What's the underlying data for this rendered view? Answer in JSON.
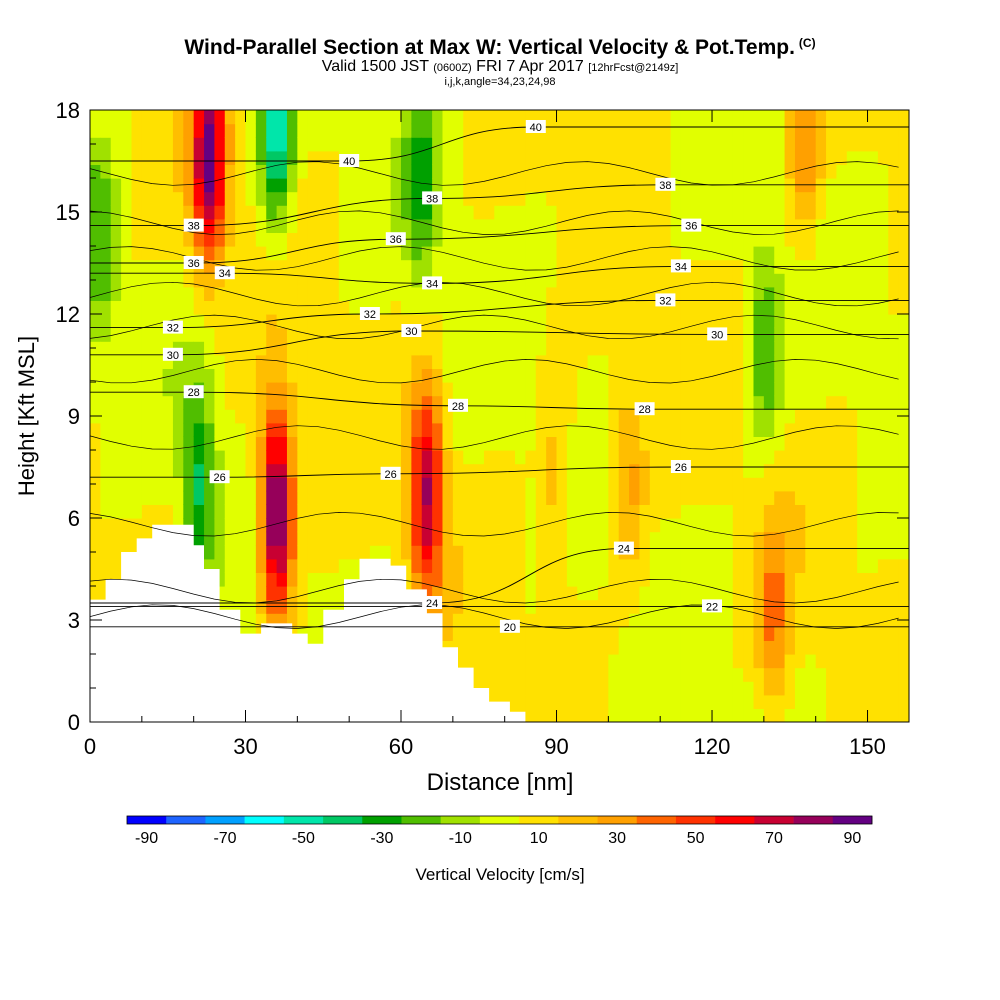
{
  "header": {
    "title": "Wind-Parallel Section at Max W: Vertical Velocity & Pot.Temp.",
    "title_tag": "(C)",
    "valid_prefix": "Valid 1500 JST",
    "valid_utc": "(0600Z)",
    "valid_date": "FRI 7 Apr 2017",
    "forecast": "[12hrFcst@2149z]",
    "indices": "i,j,k,angle=34,23,24,98"
  },
  "colors": {
    "colorbar": [
      "#0000ff",
      "#1e64ff",
      "#00a0ff",
      "#00ffff",
      "#00e6aa",
      "#00c864",
      "#00a000",
      "#50be00",
      "#a0e100",
      "#e1ff00",
      "#ffe100",
      "#ffbe00",
      "#ffa000",
      "#ff6400",
      "#ff3200",
      "#ff0000",
      "#c80032",
      "#96005a",
      "#640082"
    ]
  },
  "chart_data": {
    "type": "heatmap",
    "xlabel": "Distance [nm]",
    "ylabel": "Height [Kft MSL]",
    "xlim": [
      0,
      158
    ],
    "ylim": [
      0,
      18
    ],
    "xticks": [
      0,
      30,
      60,
      90,
      120,
      150
    ],
    "yticks": [
      0,
      3,
      6,
      9,
      12,
      15,
      18
    ],
    "colorbar": {
      "label": "Vertical Velocity [cm/s]",
      "ticks": [
        -90,
        -70,
        -50,
        -30,
        -10,
        10,
        30,
        50,
        70,
        90
      ],
      "levels": [
        -95,
        -85,
        -75,
        -65,
        -55,
        -45,
        -35,
        -25,
        -15,
        -5,
        5,
        15,
        25,
        35,
        45,
        55,
        65,
        75,
        85,
        95
      ]
    },
    "terrain_profile": [
      [
        0,
        3.6
      ],
      [
        3,
        3.6
      ],
      [
        3,
        4.2
      ],
      [
        6,
        4.2
      ],
      [
        6,
        5
      ],
      [
        9,
        5
      ],
      [
        9,
        5.4
      ],
      [
        12,
        5.4
      ],
      [
        12,
        5.8
      ],
      [
        20,
        5.8
      ],
      [
        20,
        5.2
      ],
      [
        22,
        5.2
      ],
      [
        22,
        4.5
      ],
      [
        25,
        4.5
      ],
      [
        25,
        3.3
      ],
      [
        29,
        3.3
      ],
      [
        29,
        2.6
      ],
      [
        33,
        2.6
      ],
      [
        33,
        2.9
      ],
      [
        39,
        2.9
      ],
      [
        39,
        2.6
      ],
      [
        42,
        2.6
      ],
      [
        42,
        2.3
      ],
      [
        45,
        2.3
      ],
      [
        45,
        3.3
      ],
      [
        49,
        3.3
      ],
      [
        49,
        4.2
      ],
      [
        52,
        4.2
      ],
      [
        52,
        4.8
      ],
      [
        58,
        4.8
      ],
      [
        58,
        4.6
      ],
      [
        61,
        4.6
      ],
      [
        61,
        3.9
      ],
      [
        65,
        3.9
      ],
      [
        65,
        3.2
      ],
      [
        68,
        3.2
      ],
      [
        68,
        2.2
      ],
      [
        71,
        2.2
      ],
      [
        71,
        1.6
      ],
      [
        74,
        1.6
      ],
      [
        74,
        1
      ],
      [
        77,
        1
      ],
      [
        77,
        0.6
      ],
      [
        81,
        0.6
      ],
      [
        81,
        0.3
      ],
      [
        84,
        0.3
      ],
      [
        84,
        0
      ],
      [
        0,
        0
      ]
    ],
    "velocity_features": [
      {
        "x": 23,
        "z": 16.5,
        "w": 80
      },
      {
        "x": 36,
        "z": 6.2,
        "w": 95
      },
      {
        "x": 65,
        "z": 6.8,
        "w": 70
      },
      {
        "x": 36,
        "z": 17.5,
        "w": -55
      },
      {
        "x": 21,
        "z": 7,
        "w": -40
      },
      {
        "x": 64,
        "z": 16,
        "w": -30
      },
      {
        "x": 2,
        "z": 14,
        "w": -25
      },
      {
        "x": 130,
        "z": 11,
        "w": -30
      },
      {
        "x": 138,
        "z": 17,
        "w": 30
      },
      {
        "x": 132,
        "z": 3,
        "w": 30
      },
      {
        "x": 104,
        "z": 7,
        "w": 25
      },
      {
        "x": 90,
        "z": 7,
        "w": 20
      }
    ],
    "theta_contours": [
      {
        "label": "20",
        "label_pos": [
          81,
          2.8
        ]
      },
      {
        "label": "22",
        "label_pos": [
          120,
          3.4
        ]
      },
      {
        "label": "24",
        "label_pos": [
          66,
          3.5
        ]
      },
      {
        "label": "24",
        "label_pos": [
          103,
          5.1
        ]
      },
      {
        "label": "26",
        "label_pos": [
          25,
          7.2
        ]
      },
      {
        "label": "26",
        "label_pos": [
          58,
          7.3
        ]
      },
      {
        "label": "26",
        "label_pos": [
          114,
          7.5
        ]
      },
      {
        "label": "28",
        "label_pos": [
          20,
          9.7
        ]
      },
      {
        "label": "28",
        "label_pos": [
          71,
          9.3
        ]
      },
      {
        "label": "28",
        "label_pos": [
          107,
          9.2
        ]
      },
      {
        "label": "30",
        "label_pos": [
          16,
          10.8
        ]
      },
      {
        "label": "30",
        "label_pos": [
          62,
          11.5
        ]
      },
      {
        "label": "30",
        "label_pos": [
          121,
          11.4
        ]
      },
      {
        "label": "32",
        "label_pos": [
          16,
          11.6
        ]
      },
      {
        "label": "32",
        "label_pos": [
          54,
          12
        ]
      },
      {
        "label": "32",
        "label_pos": [
          111,
          12.4
        ]
      },
      {
        "label": "34",
        "label_pos": [
          26,
          13.2
        ]
      },
      {
        "label": "34",
        "label_pos": [
          66,
          12.9
        ]
      },
      {
        "label": "34",
        "label_pos": [
          114,
          13.4
        ]
      },
      {
        "label": "36",
        "label_pos": [
          20,
          13.5
        ]
      },
      {
        "label": "36",
        "label_pos": [
          59,
          14.2
        ]
      },
      {
        "label": "36",
        "label_pos": [
          116,
          14.6
        ]
      },
      {
        "label": "38",
        "label_pos": [
          20,
          14.6
        ]
      },
      {
        "label": "38",
        "label_pos": [
          66,
          15.4
        ]
      },
      {
        "label": "38",
        "label_pos": [
          111,
          15.8
        ]
      },
      {
        "label": "40",
        "label_pos": [
          50,
          16.5
        ]
      },
      {
        "label": "40",
        "label_pos": [
          86,
          17.5
        ]
      }
    ]
  }
}
